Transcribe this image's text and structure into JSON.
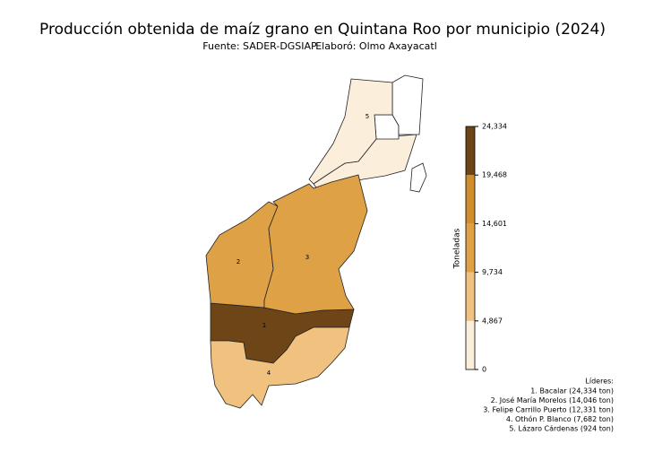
{
  "chart_data": {
    "type": "choropleth",
    "title": "Producción obtenida de maíz grano en Quintana Roo por municipio (2024)",
    "subtitle": [
      "Fuente: SADER-DGSIAP",
      "Elaboró: Olmo Axayacatl"
    ],
    "colorbar": {
      "label": "Toneladas",
      "lim": [
        0,
        24334
      ],
      "ticks": [
        0,
        {
          "value": 4867,
          "label": "4,867"
        },
        {
          "value": 9734,
          "label": "9,734"
        },
        {
          "value": 14601,
          "label": "14,601"
        },
        {
          "value": 19468,
          "label": "19,468"
        },
        {
          "value": 24334,
          "label": "24,334"
        }
      ],
      "colors": [
        "#fbeedb",
        "#f1c27f",
        "#dfa146",
        "#cf8d2e",
        "#6e4516"
      ]
    },
    "regions": [
      {
        "label": "1",
        "value": 24334
      },
      {
        "label": "2",
        "value": 14046
      },
      {
        "label": "3",
        "value": 12331
      },
      {
        "label": "4",
        "value": 7682
      },
      {
        "label": "5",
        "value": 924
      }
    ],
    "legend_title": "Líderes:",
    "legend_items": [
      "1. Bacalar (24,334 ton)",
      "2. José María Morelos (14,046 ton)",
      "3. Felipe Carrillo Puerto (12,331 ton)",
      "4. Othón P. Blanco (7,682 ton)",
      "5. Lázaro Cárdenas (924 ton)"
    ]
  }
}
